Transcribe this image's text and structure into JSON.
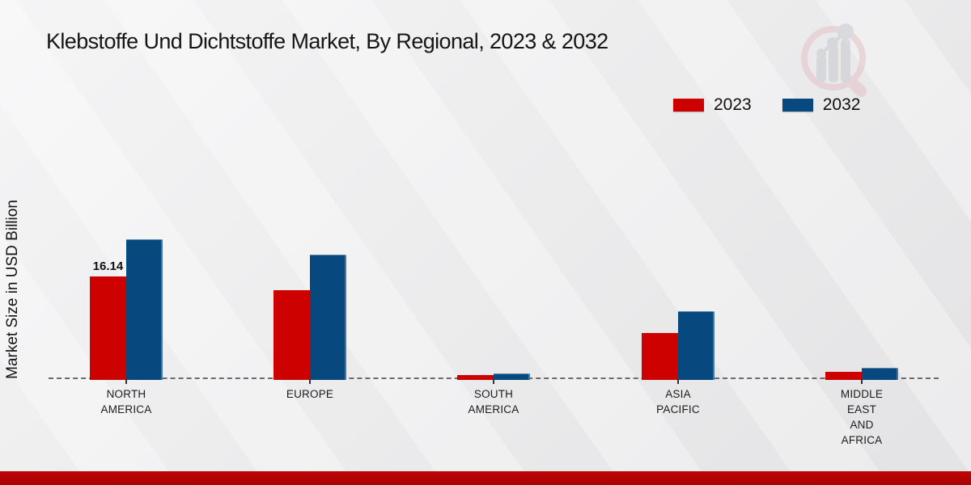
{
  "header": {
    "title": "Klebstoffe Und Dichtstoffe Market, By Regional, 2023 & 2032"
  },
  "branding": {
    "logo_icon": "magnifier-bar-chart-watermark",
    "footer_color": "#b00404",
    "logo_circle_color": "#e2c2c7",
    "logo_bar_color": "#c7c9cd"
  },
  "legend": {
    "position": "top-right",
    "items": [
      {
        "label": "2023",
        "color": "#cc0100"
      },
      {
        "label": "2032",
        "color": "#07497f"
      }
    ]
  },
  "chart_data": {
    "type": "bar",
    "title": "Klebstoffe Und Dichtstoffe Market, By Regional, 2023 & 2032",
    "xlabel": "",
    "ylabel": "Market Size in USD Billion",
    "categories": [
      "NORTH AMERICA",
      "EUROPE",
      "SOUTH AMERICA",
      "ASIA PACIFIC",
      "MIDDLE EAST AND AFRICA"
    ],
    "category_lines": [
      [
        "NORTH",
        "AMERICA"
      ],
      [
        "EUROPE"
      ],
      [
        "SOUTH",
        "AMERICA"
      ],
      [
        "ASIA",
        "PACIFIC"
      ],
      [
        "MIDDLE",
        "EAST",
        "AND",
        "AFRICA"
      ]
    ],
    "series": [
      {
        "name": "2023",
        "color": "#cc0100",
        "values": [
          16.14,
          14.0,
          0.75,
          7.3,
          1.25
        ]
      },
      {
        "name": "2032",
        "color": "#07497f",
        "values": [
          22.0,
          19.5,
          1.05,
          10.7,
          1.9
        ]
      }
    ],
    "data_labels": [
      {
        "series": 0,
        "category": 0,
        "text": "16.14"
      }
    ],
    "ylim": [
      0,
      25
    ],
    "grid": false,
    "baseline_style": "dashed",
    "legend_position": "top-right"
  }
}
